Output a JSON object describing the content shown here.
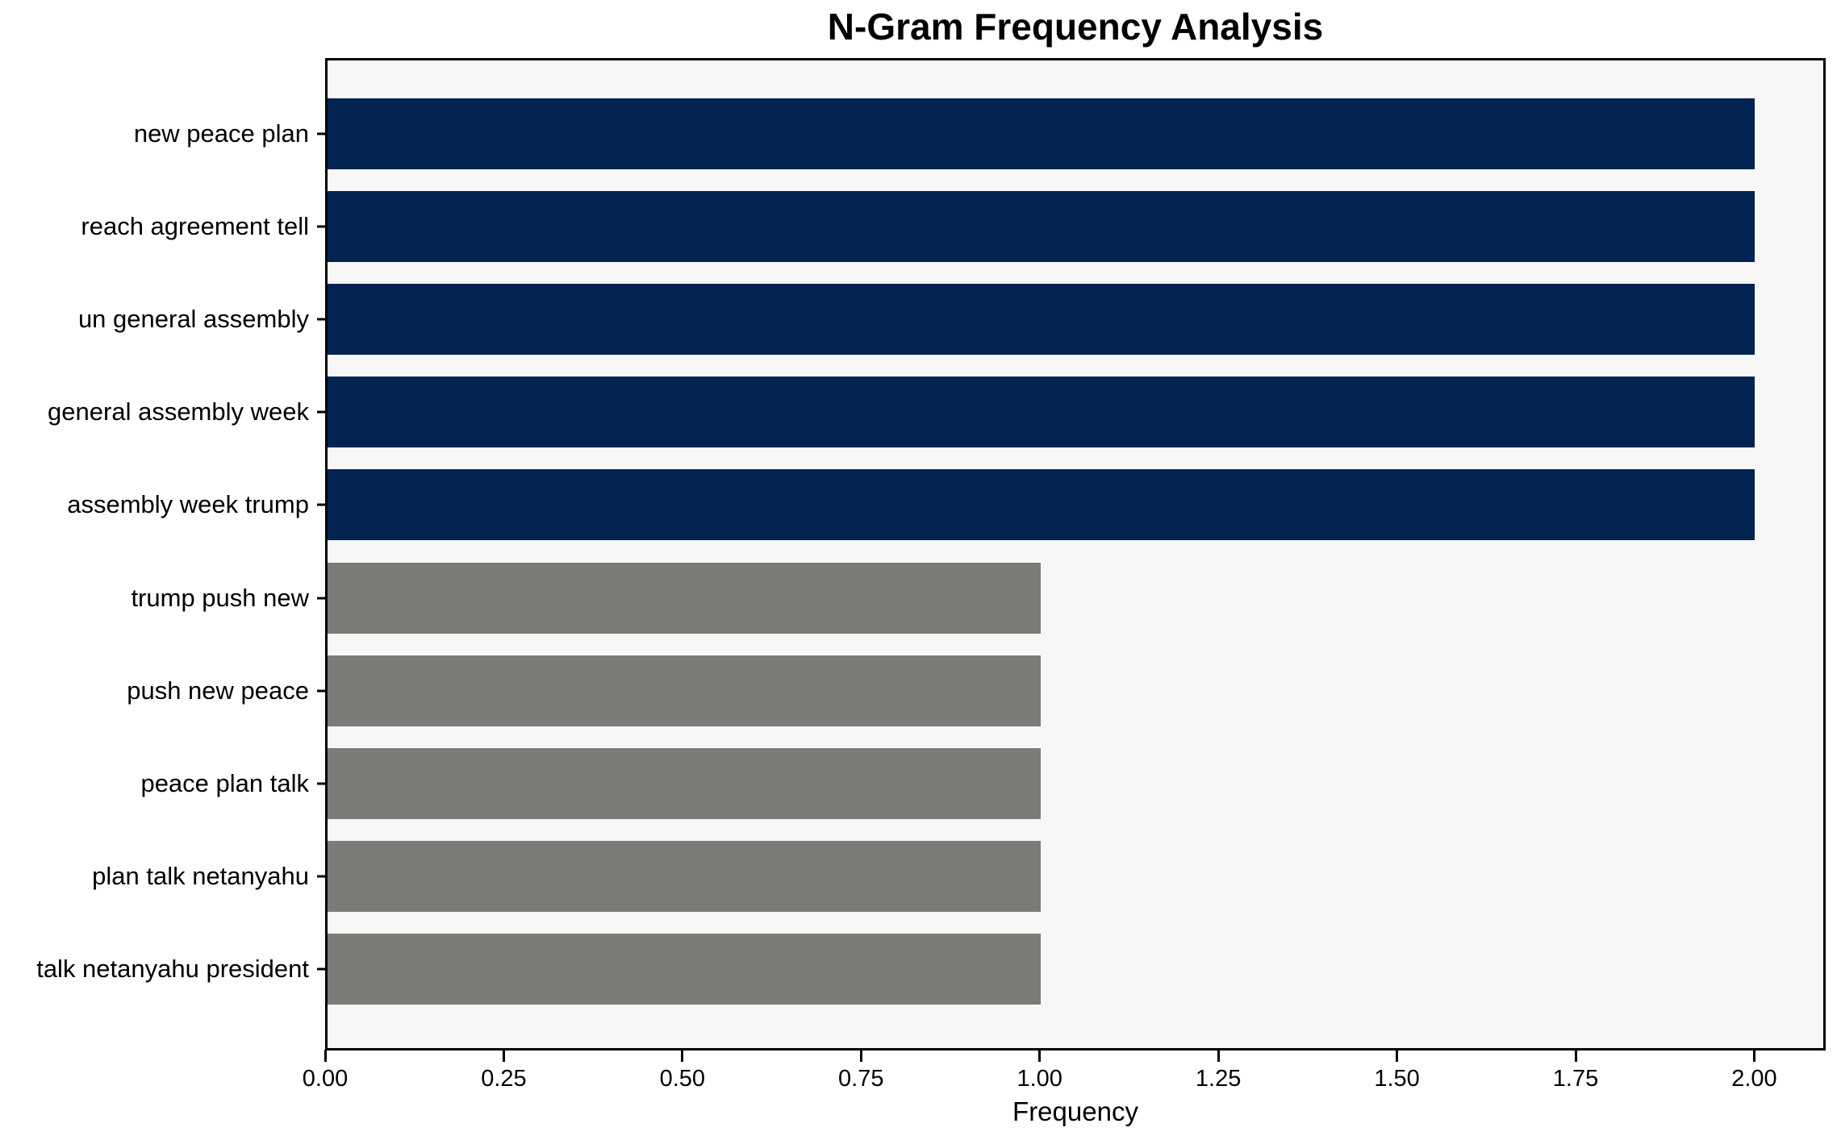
{
  "title": "N-Gram Frequency Analysis",
  "colors": {
    "high_bar": "#032450",
    "low_bar": "#7b7b78",
    "plot_background": "#f7f7f7",
    "figure_background": "#ffffff",
    "spine": "#000000",
    "text": "#000000"
  },
  "chart_data": {
    "type": "bar",
    "orientation": "horizontal",
    "title": "N-Gram Frequency Analysis",
    "xlabel": "Frequency",
    "ylabel": "",
    "categories": [
      "new peace plan",
      "reach agreement tell",
      "un general assembly",
      "general assembly week",
      "assembly week trump",
      "trump push new",
      "push new peace",
      "peace plan talk",
      "plan talk netanyahu",
      "talk netanyahu president"
    ],
    "values": [
      2,
      2,
      2,
      2,
      2,
      1,
      1,
      1,
      1,
      1
    ],
    "bar_colors": [
      "#032450",
      "#032450",
      "#032450",
      "#032450",
      "#032450",
      "#7b7b78",
      "#7b7b78",
      "#7b7b78",
      "#7b7b78",
      "#7b7b78"
    ],
    "xlim": [
      0,
      2.1
    ],
    "xticks": [
      {
        "label": "0.00",
        "value": 0.0
      },
      {
        "label": "0.25",
        "value": 0.25
      },
      {
        "label": "0.50",
        "value": 0.5
      },
      {
        "label": "0.75",
        "value": 0.75
      },
      {
        "label": "1.00",
        "value": 1.0
      },
      {
        "label": "1.25",
        "value": 1.25
      },
      {
        "label": "1.50",
        "value": 1.5
      },
      {
        "label": "1.75",
        "value": 1.75
      },
      {
        "label": "2.00",
        "value": 2.0
      }
    ],
    "grid": false,
    "legend": false
  }
}
